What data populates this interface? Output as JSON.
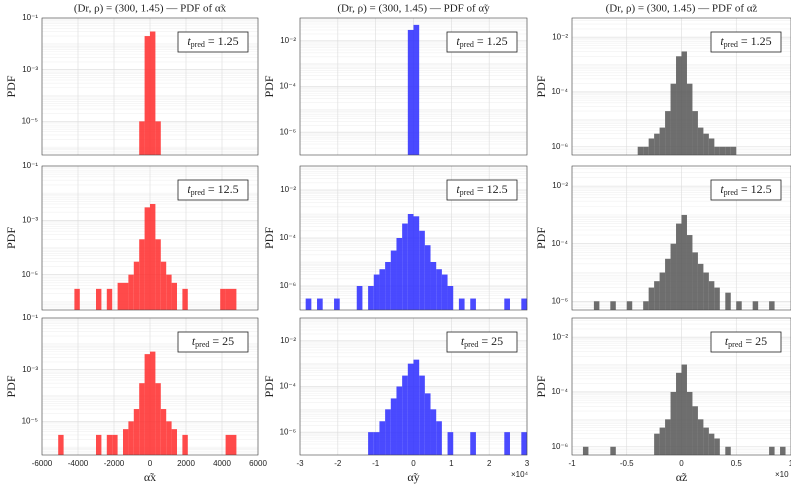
{
  "chart_data": [
    {
      "type": "histogram",
      "title": "(Dr, ρ) = (300, 1.45) — PDF of α̃x",
      "ylabel": "PDF",
      "annotation": {
        "symbol": "t",
        "subscript": "pred",
        "text": "= 1.25"
      },
      "color": "#ff2a2a",
      "log_y": true,
      "grid": true,
      "show_xticklabels": false,
      "bins": [
        -6000,
        -5700,
        -5400,
        -5100,
        -4800,
        -4500,
        -4200,
        -3900,
        -3600,
        -3300,
        -3000,
        -2700,
        -2400,
        -2100,
        -1800,
        -1500,
        -1200,
        -900,
        -600,
        -300,
        0,
        300,
        600,
        900,
        1200,
        1500,
        1800,
        2100,
        2400,
        2700,
        3000,
        3300,
        3600,
        3900,
        4200,
        4500,
        4800,
        5100,
        5400,
        5700,
        6000
      ],
      "values": [
        0,
        0,
        0,
        0,
        0,
        0,
        0,
        0,
        0,
        0,
        0,
        0,
        0,
        0,
        0,
        0,
        0,
        0,
        1e-05,
        0.02,
        0.03,
        1e-05,
        0,
        0,
        0,
        0,
        0,
        0,
        0,
        0,
        0,
        0,
        0,
        0,
        0,
        0,
        0,
        0,
        0,
        0
      ],
      "xlim": [
        -6000,
        6000
      ],
      "xticks": [
        -6000,
        -4000,
        -2000,
        0,
        2000,
        4000,
        6000
      ],
      "ylim": [
        5e-07,
        0.1
      ],
      "yticks": [
        {
          "value": 0.1,
          "label": "10⁻¹"
        },
        {
          "value": 0.001,
          "label": "10⁻³"
        },
        {
          "value": 1e-05,
          "label": "10⁻⁵"
        }
      ]
    },
    {
      "type": "histogram",
      "title": "(Dr, ρ) = (300, 1.45) — PDF of α̃y",
      "ylabel": "PDF",
      "annotation": {
        "symbol": "t",
        "subscript": "pred",
        "text": "= 1.25"
      },
      "color": "#2a2aff",
      "log_y": true,
      "grid": true,
      "show_xticklabels": false,
      "bins": [
        -3,
        -2.85,
        -2.7,
        -2.55,
        -2.4,
        -2.25,
        -2.1,
        -1.95,
        -1.8,
        -1.65,
        -1.5,
        -1.35,
        -1.2,
        -1.05,
        -0.9,
        -0.75,
        -0.6,
        -0.45,
        -0.3,
        -0.15,
        0,
        0.15,
        0.3,
        0.45,
        0.6,
        0.75,
        0.9,
        1.05,
        1.2,
        1.35,
        1.5,
        1.65,
        1.8,
        1.95,
        2.1,
        2.25,
        2.4,
        2.55,
        2.7,
        2.85,
        3
      ],
      "values": [
        0,
        0,
        0,
        0,
        0,
        0,
        0,
        0,
        0,
        0,
        0,
        0,
        0,
        0,
        0,
        0,
        0,
        0,
        0,
        0.03,
        0.05,
        0,
        0,
        0,
        0,
        0,
        0,
        0,
        0,
        0,
        0,
        0,
        0,
        0,
        0,
        0,
        0,
        0,
        0,
        0
      ],
      "xlim": [
        -3,
        3
      ],
      "xticks": [
        -3,
        -2,
        -1,
        0,
        1,
        2,
        3
      ],
      "ylim": [
        1e-07,
        0.1
      ],
      "yticks": [
        {
          "value": 0.01,
          "label": "10⁻²"
        },
        {
          "value": 0.0001,
          "label": "10⁻⁴"
        },
        {
          "value": 1e-06,
          "label": "10⁻⁶"
        }
      ]
    },
    {
      "type": "histogram",
      "title": "(Dr, ρ) = (300, 1.45) — PDF of α̃z",
      "ylabel": "PDF",
      "annotation": {
        "symbol": "t",
        "subscript": "pred",
        "text": "= 1.25"
      },
      "color": "#555555",
      "log_y": true,
      "grid": true,
      "show_xticklabels": false,
      "bins": [
        -1,
        -0.95,
        -0.9,
        -0.85,
        -0.8,
        -0.75,
        -0.7,
        -0.65,
        -0.6,
        -0.55,
        -0.5,
        -0.45,
        -0.4,
        -0.35,
        -0.3,
        -0.25,
        -0.2,
        -0.15,
        -0.1,
        -0.05,
        0,
        0.05,
        0.1,
        0.15,
        0.2,
        0.25,
        0.3,
        0.35,
        0.4,
        0.45,
        0.5,
        0.55,
        0.6,
        0.65,
        0.7,
        0.75,
        0.8,
        0.85,
        0.9,
        0.95,
        1
      ],
      "values": [
        0,
        0,
        0,
        0,
        0,
        0,
        0,
        0,
        0,
        0,
        0,
        0,
        1e-06,
        1e-06,
        2e-06,
        3e-06,
        5e-06,
        2e-05,
        0.0002,
        0.002,
        0.003,
        0.0002,
        2e-05,
        5e-06,
        3e-06,
        2e-06,
        1e-06,
        1e-06,
        1e-06,
        1e-06,
        0,
        0,
        0,
        0,
        0,
        0,
        0,
        0,
        0,
        0
      ],
      "xlim": [
        -1,
        1
      ],
      "xticks": [
        -1,
        -0.5,
        0,
        0.5,
        1
      ],
      "ylim": [
        5e-07,
        0.05
      ],
      "yticks": [
        {
          "value": 0.01,
          "label": "10⁻²"
        },
        {
          "value": 0.0001,
          "label": "10⁻⁴"
        },
        {
          "value": 1e-06,
          "label": "10⁻⁶"
        }
      ]
    },
    {
      "type": "histogram",
      "ylabel": "PDF",
      "annotation": {
        "symbol": "t",
        "subscript": "pred",
        "text": "= 12.5"
      },
      "color": "#ff2a2a",
      "log_y": true,
      "grid": true,
      "show_xticklabels": false,
      "bins": [
        -6000,
        -5700,
        -5400,
        -5100,
        -4800,
        -4500,
        -4200,
        -3900,
        -3600,
        -3300,
        -3000,
        -2700,
        -2400,
        -2100,
        -1800,
        -1500,
        -1200,
        -900,
        -600,
        -300,
        0,
        300,
        600,
        900,
        1200,
        1500,
        1800,
        2100,
        2400,
        2700,
        3000,
        3300,
        3600,
        3900,
        4200,
        4500,
        4800,
        5100,
        5400,
        5700,
        6000
      ],
      "values": [
        0,
        0,
        0,
        0,
        0,
        0,
        3e-06,
        0,
        0,
        0,
        3e-06,
        0,
        3e-06,
        0,
        5e-06,
        5e-06,
        1e-05,
        3e-05,
        0.0002,
        0.003,
        0.004,
        0.0002,
        3e-05,
        1e-05,
        5e-06,
        0,
        3e-06,
        0,
        0,
        0,
        0,
        0,
        0,
        3e-06,
        3e-06,
        3e-06,
        0,
        0,
        0,
        0
      ],
      "xlim": [
        -6000,
        6000
      ],
      "xticks": [
        -6000,
        -4000,
        -2000,
        0,
        2000,
        4000,
        6000
      ],
      "ylim": [
        5e-07,
        0.1
      ],
      "yticks": [
        {
          "value": 0.1,
          "label": "10⁻¹"
        },
        {
          "value": 0.001,
          "label": "10⁻³"
        },
        {
          "value": 1e-05,
          "label": "10⁻⁵"
        }
      ]
    },
    {
      "type": "histogram",
      "ylabel": "PDF",
      "annotation": {
        "symbol": "t",
        "subscript": "pred",
        "text": "= 12.5"
      },
      "color": "#2a2aff",
      "log_y": true,
      "grid": true,
      "show_xticklabels": false,
      "bins": [
        -3,
        -2.85,
        -2.7,
        -2.55,
        -2.4,
        -2.25,
        -2.1,
        -1.95,
        -1.8,
        -1.65,
        -1.5,
        -1.35,
        -1.2,
        -1.05,
        -0.9,
        -0.75,
        -0.6,
        -0.45,
        -0.3,
        -0.15,
        0,
        0.15,
        0.3,
        0.45,
        0.6,
        0.75,
        0.9,
        1.05,
        1.2,
        1.35,
        1.5,
        1.65,
        1.8,
        1.95,
        2.1,
        2.25,
        2.4,
        2.55,
        2.7,
        2.85,
        3
      ],
      "values": [
        0,
        3e-07,
        0,
        3e-07,
        0,
        0,
        3e-07,
        0,
        0,
        0,
        1e-06,
        0,
        1e-06,
        3e-06,
        5e-06,
        1e-05,
        3e-05,
        0.0001,
        0.0004,
        0.001,
        0.0008,
        0.0002,
        5e-05,
        1e-05,
        5e-06,
        3e-06,
        1e-06,
        0,
        3e-07,
        0,
        3e-07,
        0,
        0,
        0,
        0,
        0,
        3e-07,
        0,
        0,
        3e-07
      ],
      "xlim": [
        -3,
        3
      ],
      "xticks": [
        -3,
        -2,
        -1,
        0,
        1,
        2,
        3
      ],
      "ylim": [
        1e-07,
        0.1
      ],
      "yticks": [
        {
          "value": 0.01,
          "label": "10⁻²"
        },
        {
          "value": 0.0001,
          "label": "10⁻⁴"
        },
        {
          "value": 1e-06,
          "label": "10⁻⁶"
        }
      ]
    },
    {
      "type": "histogram",
      "ylabel": "PDF",
      "annotation": {
        "symbol": "t",
        "subscript": "pred",
        "text": "= 12.5"
      },
      "color": "#555555",
      "log_y": true,
      "grid": true,
      "show_xticklabels": false,
      "bins": [
        -1,
        -0.95,
        -0.9,
        -0.85,
        -0.8,
        -0.75,
        -0.7,
        -0.65,
        -0.6,
        -0.55,
        -0.5,
        -0.45,
        -0.4,
        -0.35,
        -0.3,
        -0.25,
        -0.2,
        -0.15,
        -0.1,
        -0.05,
        0,
        0.05,
        0.1,
        0.15,
        0.2,
        0.25,
        0.3,
        0.35,
        0.4,
        0.45,
        0.5,
        0.55,
        0.6,
        0.65,
        0.7,
        0.75,
        0.8,
        0.85,
        0.9,
        0.95,
        1
      ],
      "values": [
        0,
        0,
        0,
        0,
        1e-06,
        0,
        0,
        1e-06,
        0,
        0,
        1e-06,
        0,
        0,
        1e-06,
        3e-06,
        5e-06,
        1e-05,
        3e-05,
        0.0001,
        0.0005,
        0.001,
        0.0002,
        5e-05,
        2e-05,
        1e-05,
        5e-06,
        3e-06,
        0,
        2e-06,
        0,
        1e-06,
        0,
        0,
        1e-06,
        0,
        0,
        1e-06,
        0,
        0,
        0
      ],
      "xlim": [
        -1,
        1
      ],
      "xticks": [
        -1,
        -0.5,
        0,
        0.5,
        1
      ],
      "ylim": [
        5e-07,
        0.05
      ],
      "yticks": [
        {
          "value": 0.01,
          "label": "10⁻²"
        },
        {
          "value": 0.0001,
          "label": "10⁻⁴"
        },
        {
          "value": 1e-06,
          "label": "10⁻⁶"
        }
      ]
    },
    {
      "type": "histogram",
      "ylabel": "PDF",
      "xlabel": "α̃x",
      "annotation": {
        "symbol": "t",
        "subscript": "pred",
        "text": "= 25"
      },
      "color": "#ff2a2a",
      "log_y": true,
      "grid": true,
      "show_xticklabels": true,
      "bins": [
        -6000,
        -5700,
        -5400,
        -5100,
        -4800,
        -4500,
        -4200,
        -3900,
        -3600,
        -3300,
        -3000,
        -2700,
        -2400,
        -2100,
        -1800,
        -1500,
        -1200,
        -900,
        -600,
        -300,
        0,
        300,
        600,
        900,
        1200,
        1500,
        1800,
        2100,
        2400,
        2700,
        3000,
        3300,
        3600,
        3900,
        4200,
        4500,
        4800,
        5100,
        5400,
        5700,
        6000
      ],
      "values": [
        0,
        0,
        0,
        3e-06,
        0,
        0,
        0,
        0,
        0,
        0,
        3e-06,
        0,
        3e-06,
        3e-06,
        0,
        5e-06,
        1e-05,
        3e-05,
        0.0003,
        0.004,
        0.005,
        0.0003,
        3e-05,
        1e-05,
        5e-06,
        0,
        3e-06,
        0,
        0,
        0,
        0,
        0,
        0,
        0,
        3e-06,
        3e-06,
        0,
        0,
        0,
        0
      ],
      "xlim": [
        -6000,
        6000
      ],
      "xticks": [
        -6000,
        -4000,
        -2000,
        0,
        2000,
        4000,
        6000
      ],
      "ylim": [
        5e-07,
        0.1
      ],
      "yticks": [
        {
          "value": 0.1,
          "label": "10⁻¹"
        },
        {
          "value": 0.001,
          "label": "10⁻³"
        },
        {
          "value": 1e-05,
          "label": "10⁻⁵"
        }
      ]
    },
    {
      "type": "histogram",
      "ylabel": "PDF",
      "xlabel": "α̃y",
      "x_multiplier": "×10⁴",
      "annotation": {
        "symbol": "t",
        "subscript": "pred",
        "text": "= 25"
      },
      "color": "#2a2aff",
      "log_y": true,
      "grid": true,
      "show_xticklabels": true,
      "bins": [
        -3,
        -2.85,
        -2.7,
        -2.55,
        -2.4,
        -2.25,
        -2.1,
        -1.95,
        -1.8,
        -1.65,
        -1.5,
        -1.35,
        -1.2,
        -1.05,
        -0.9,
        -0.75,
        -0.6,
        -0.45,
        -0.3,
        -0.15,
        0,
        0.15,
        0.3,
        0.45,
        0.6,
        0.75,
        0.9,
        1.05,
        1.2,
        1.35,
        1.5,
        1.65,
        1.8,
        1.95,
        2.1,
        2.25,
        2.4,
        2.55,
        2.7,
        2.85,
        3
      ],
      "values": [
        0,
        0,
        0,
        0,
        0,
        0,
        0,
        0,
        0,
        0,
        0,
        0,
        1e-06,
        1e-06,
        3e-06,
        1e-05,
        3e-05,
        0.0001,
        0.0003,
        0.001,
        0.0015,
        0.0003,
        5e-05,
        1e-05,
        3e-06,
        0,
        1e-06,
        0,
        0,
        0,
        1e-06,
        0,
        0,
        0,
        0,
        0,
        1e-06,
        0,
        0,
        1e-06
      ],
      "xlim": [
        -3,
        3
      ],
      "xticks": [
        -3,
        -2,
        -1,
        0,
        1,
        2,
        3
      ],
      "ylim": [
        1e-07,
        0.1
      ],
      "yticks": [
        {
          "value": 0.01,
          "label": "10⁻²"
        },
        {
          "value": 0.0001,
          "label": "10⁻⁴"
        },
        {
          "value": 1e-06,
          "label": "10⁻⁶"
        }
      ]
    },
    {
      "type": "histogram",
      "ylabel": "PDF",
      "xlabel": "α̃z",
      "x_multiplier": "×10",
      "annotation": {
        "symbol": "t",
        "subscript": "pred",
        "text": "= 25"
      },
      "color": "#555555",
      "log_y": true,
      "grid": true,
      "show_xticklabels": true,
      "bins": [
        -1,
        -0.95,
        -0.9,
        -0.85,
        -0.8,
        -0.75,
        -0.7,
        -0.65,
        -0.6,
        -0.55,
        -0.5,
        -0.45,
        -0.4,
        -0.35,
        -0.3,
        -0.25,
        -0.2,
        -0.15,
        -0.1,
        -0.05,
        0,
        0.05,
        0.1,
        0.15,
        0.2,
        0.25,
        0.3,
        0.35,
        0.4,
        0.45,
        0.5,
        0.55,
        0.6,
        0.65,
        0.7,
        0.75,
        0.8,
        0.85,
        0.9,
        0.95,
        1
      ],
      "values": [
        0,
        0,
        1e-06,
        0,
        0,
        0,
        0,
        1e-06,
        0,
        0,
        0,
        0,
        0,
        0,
        0,
        3e-06,
        5e-06,
        1e-05,
        0.0001,
        0.0005,
        0.001,
        0.0001,
        3e-05,
        1e-05,
        5e-06,
        3e-06,
        2e-06,
        0,
        1e-06,
        0,
        0,
        0,
        0,
        0,
        0,
        0,
        1e-06,
        0,
        1e-06,
        0
      ],
      "xlim": [
        -1,
        1
      ],
      "xticks": [
        -1,
        -0.5,
        0,
        0.5,
        1
      ],
      "ylim": [
        5e-07,
        0.05
      ],
      "yticks": [
        {
          "value": 0.01,
          "label": "10⁻²"
        },
        {
          "value": 0.0001,
          "label": "10⁻⁴"
        },
        {
          "value": 1e-06,
          "label": "10⁻⁶"
        }
      ]
    }
  ]
}
